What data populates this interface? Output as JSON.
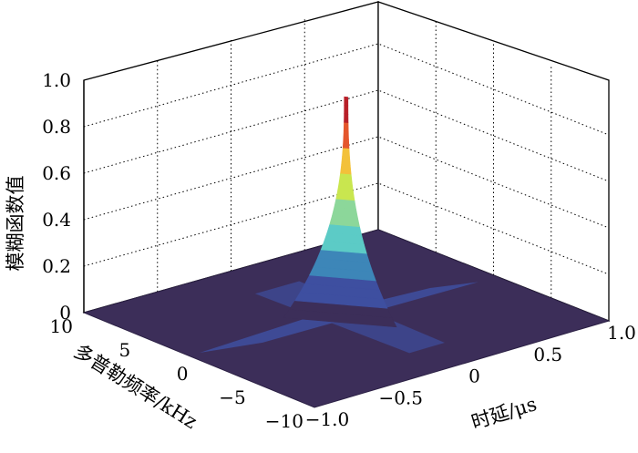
{
  "chart_data": {
    "type": "surface",
    "title": "",
    "xlabel": "时延/μs",
    "ylabel": "多普勒频率/kHz",
    "zlabel": "模糊函数值",
    "x_range": [
      -1.0,
      1.0
    ],
    "y_range": [
      -10,
      10
    ],
    "z_range": [
      0,
      1.0
    ],
    "x_ticks": [
      "−1.0",
      "−0.5",
      "0",
      "0.5",
      "1.0"
    ],
    "y_ticks": [
      "−10",
      "−5",
      "0",
      "5",
      "10"
    ],
    "z_ticks": [
      "0",
      "0.2",
      "0.4",
      "0.6",
      "0.8",
      "1.0"
    ],
    "peak": {
      "x": 0,
      "y": 0,
      "z": 0.95
    },
    "grid": true,
    "colormap": [
      "#3c2e59",
      "#3e4fa0",
      "#3d86b8",
      "#5ccbc6",
      "#8cd79a",
      "#c9e64f",
      "#f3c13a",
      "#e4562c",
      "#b81f28"
    ]
  }
}
